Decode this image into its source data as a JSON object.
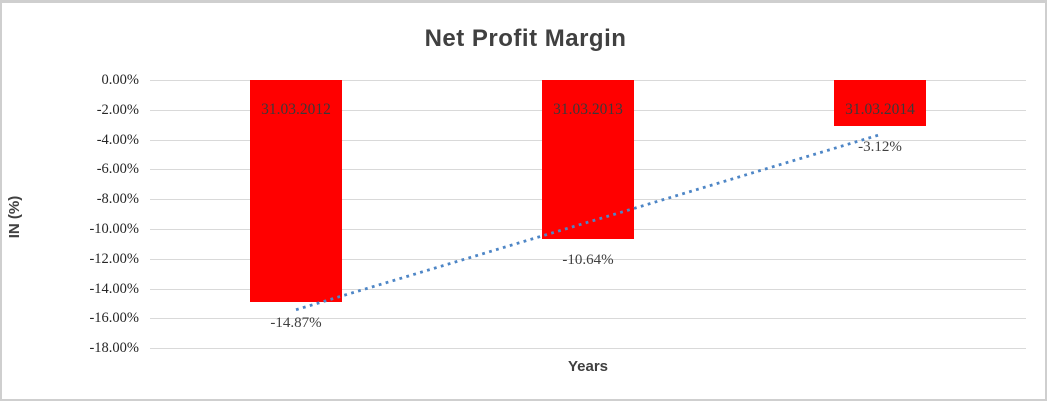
{
  "chart_data": {
    "type": "bar",
    "title": "Net Profit Margin",
    "xlabel": "Years",
    "ylabel": "IN (%)",
    "categories": [
      "31.03.2012",
      "31.03.2013",
      "31.03.2014"
    ],
    "values": [
      -14.87,
      -10.64,
      -3.12
    ],
    "data_labels": [
      "-14.87%",
      "-10.64%",
      "-3.12%"
    ],
    "ytick_labels": [
      "0.00%",
      "-2.00%",
      "-4.00%",
      "-6.00%",
      "-8.00%",
      "-10.00%",
      "-12.00%",
      "-14.00%",
      "-16.00%",
      "-18.00%"
    ],
    "ylim": [
      -18,
      0
    ],
    "ytick_step": -2,
    "grid": "horizontal",
    "legend": "none",
    "trendline": {
      "type": "linear",
      "style": "dotted"
    },
    "colors": {
      "bar_fill": "#ff0000",
      "trendline": "#4e86c6",
      "gridline": "#d9d9d9",
      "title_text": "#404040",
      "axis_title_text": "#404040",
      "tick_text": "#262626",
      "bar_label_text": "#3a3a3a",
      "frame_border": "#cfcfcf"
    }
  }
}
